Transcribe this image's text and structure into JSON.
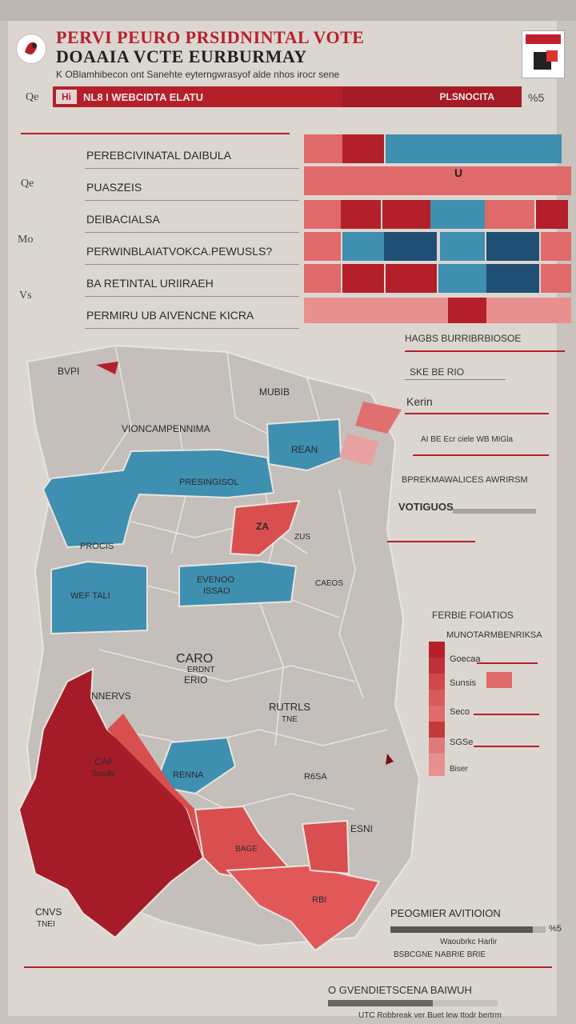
{
  "header": {
    "title_line1": "PERVI PEURO PRSIDNINTAL VOTE",
    "title_line2": "DOAAIA  VCTE EURBURMAY",
    "subtitle": "K OBlamhibecon ont Sanehte eyterngwrasyof alde nhos irocr sene"
  },
  "side_labels": {
    "top_left": "Qe",
    "top_right": "%5",
    "row_a": "Qe",
    "row_b": "Mo",
    "row_c": "Vs"
  },
  "red_bar": {
    "badge": "Hi",
    "left_label": "NL8 I  WEBCIDTA   ELATU",
    "right_label": "PLSNOCITA"
  },
  "rows": [
    {
      "label": "PEREBCIVINATAL DAIBULA"
    },
    {
      "label": "PUASZEIS"
    },
    {
      "label": "DEIBACIALSA"
    },
    {
      "label": "PERWINBLAIATVOKCA.PEWUSLS?"
    },
    {
      "label": "BA RETINTAL URIIRAEH"
    },
    {
      "label": "PERMIRU  UB AIVENCNE KICRA"
    }
  ],
  "heat_marker": "U",
  "colors": {
    "red": "#b3202a",
    "light_red": "#e06a6a",
    "blue": "#3f8fb0",
    "dark_blue": "#1f4f74",
    "gray": "#c2bcb8"
  },
  "map": {
    "labels": {
      "nw": "BVPI",
      "n": "MUBIB",
      "nc": "VIONCAMPENNIMA",
      "ne_blue": "REAN",
      "w_blue": "PRESINGISOL",
      "w2": "PROCIS",
      "c_red": "ZA",
      "c_red_sub": "ZUS",
      "sw_blue": "WEF TALI",
      "c_blue": "EVENOO",
      "c_blue_sub": "ISSAO",
      "c2": "CAEOS",
      "c3": "CARO",
      "c3_sub": "ERDNT",
      "c3_sub2": "ERIO",
      "nwest": "NNERVS",
      "mid": "RUTRLS",
      "mid_sub": "TNE",
      "sw_red": "CAF",
      "sw_red_sub": "Sosdle",
      "s_blue": "RENNA",
      "s_gray": "R6SA",
      "se_red": "ESNI",
      "s_red2": "BAGE",
      "s_red3": "RBI",
      "coast": "CNVS",
      "coast_sub": "TNEI"
    }
  },
  "legend": {
    "title": "HAGBS BURRIBRBIOSOE",
    "items": [
      "SKE BE RIO",
      "Kerin",
      "AI BE Ecr ciele WB MIGla",
      "BPREKMAWALICES  AWRIRSM",
      "VOTIGUOS"
    ],
    "section2_title": "FERBIE FOIATIOS",
    "section2_sub": "MUNOTARMBENRIKSA",
    "section2_items": [
      "Goecaa",
      "Sunsis",
      "Seco",
      "SGSe",
      "Biser"
    ]
  },
  "footer": {
    "title": "PEOGMIER  AVITIOION",
    "bar1_label": "%5",
    "row2": "Waoubrkc Harlir",
    "row3": "BSBCGNE NABRIE BRIE",
    "bottom": "O GVENDIETSCENA BAIWUH",
    "caption": "UTC Robbreak ver Buet lew ttodr bertrm",
    "progress1": 0.92,
    "progress2": 0.62
  }
}
